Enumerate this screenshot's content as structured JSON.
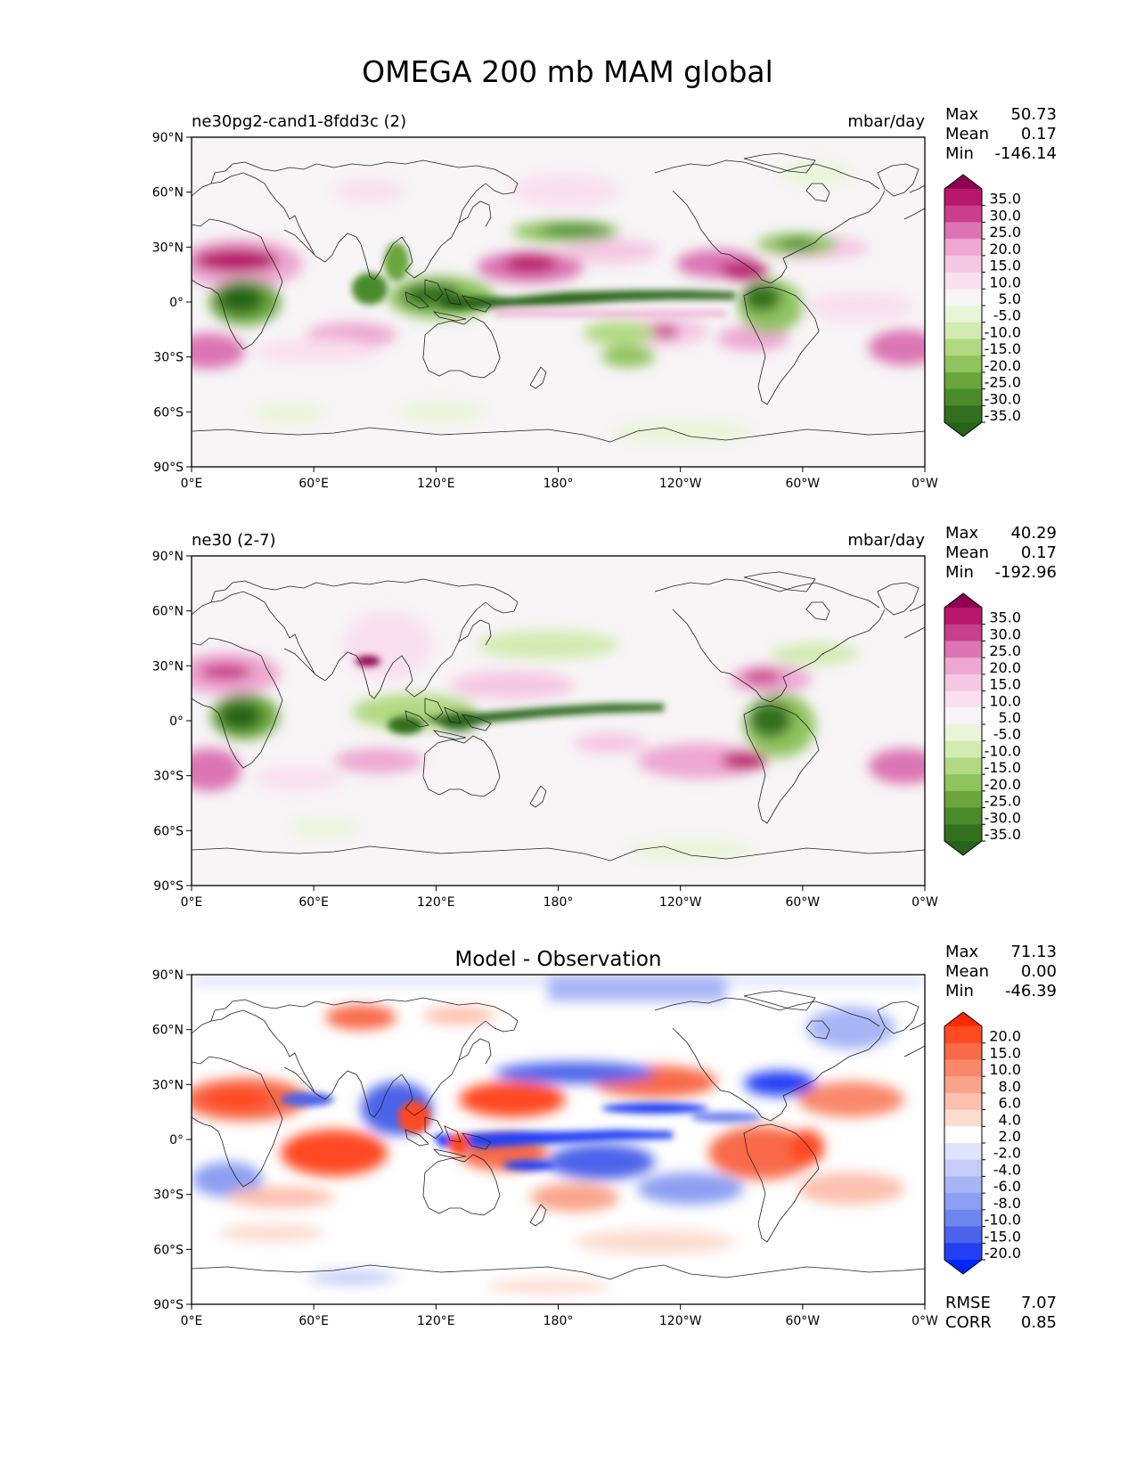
{
  "figure": {
    "title": "OMEGA 200 mb MAM global"
  },
  "axes": {
    "lat_labels": [
      "90°N",
      "60°N",
      "30°N",
      "0°",
      "30°S",
      "60°S",
      "90°S"
    ],
    "lon_labels": [
      "0°E",
      "60°E",
      "120°E",
      "180°",
      "120°W",
      "60°W",
      "0°W"
    ]
  },
  "panels": [
    {
      "title_left": "ne30pg2-cand1-8fdd3c (2)",
      "title_center": "",
      "units": "mbar/day",
      "stats": [
        {
          "label": "Max",
          "value": "50.73"
        },
        {
          "label": "Mean",
          "value": "0.17"
        },
        {
          "label": "Min",
          "value": "-146.14"
        }
      ],
      "extra_stats": [],
      "colorbar": {
        "ticks": [
          "35.0",
          "30.0",
          "25.0",
          "20.0",
          "15.0",
          "10.0",
          "5.0",
          "-5.0",
          "-10.0",
          "-15.0",
          "-20.0",
          "-25.0",
          "-30.0",
          "-35.0"
        ],
        "top_color": "#8e0152",
        "bottom_color": "#276419",
        "colors": [
          "#b8176b",
          "#c93f8b",
          "#dc75b3",
          "#eea8d2",
          "#f5c8e3",
          "#f9e0ee",
          "#f7f5f6",
          "#e9f5d9",
          "#d2ebb1",
          "#b2d982",
          "#8fc35e",
          "#6aa63c",
          "#4a8b29",
          "#33701e"
        ]
      },
      "field": "model1"
    },
    {
      "title_left": "ne30 (2-7)",
      "title_center": "",
      "units": "mbar/day",
      "stats": [
        {
          "label": "Max",
          "value": "40.29"
        },
        {
          "label": "Mean",
          "value": "0.17"
        },
        {
          "label": "Min",
          "value": "-192.96"
        }
      ],
      "extra_stats": [],
      "colorbar": {
        "ticks": [
          "35.0",
          "30.0",
          "25.0",
          "20.0",
          "15.0",
          "10.0",
          "5.0",
          "-5.0",
          "-10.0",
          "-15.0",
          "-20.0",
          "-25.0",
          "-30.0",
          "-35.0"
        ],
        "top_color": "#8e0152",
        "bottom_color": "#276419",
        "colors": [
          "#b8176b",
          "#c93f8b",
          "#dc75b3",
          "#eea8d2",
          "#f5c8e3",
          "#f9e0ee",
          "#f7f5f6",
          "#e9f5d9",
          "#d2ebb1",
          "#b2d982",
          "#8fc35e",
          "#6aa63c",
          "#4a8b29",
          "#33701e"
        ]
      },
      "field": "model2"
    },
    {
      "title_left": "",
      "title_center": "Model - Observation",
      "units": "",
      "stats": [
        {
          "label": "Max",
          "value": "71.13"
        },
        {
          "label": "Mean",
          "value": "0.00"
        },
        {
          "label": "Min",
          "value": "-46.39"
        }
      ],
      "extra_stats": [
        {
          "label": "RMSE",
          "value": "7.07"
        },
        {
          "label": "CORR",
          "value": "0.85"
        }
      ],
      "colorbar": {
        "ticks": [
          "20.0",
          "15.0",
          "10.0",
          "8.0",
          "6.0",
          "4.0",
          "2.0",
          "-2.0",
          "-4.0",
          "-6.0",
          "-8.0",
          "-10.0",
          "-15.0",
          "-20.0"
        ],
        "top_color": "#ff2a00",
        "bottom_color": "#0026ff",
        "colors": [
          "#ff4a22",
          "#f86a48",
          "#f9886a",
          "#faa48c",
          "#fcc0ae",
          "#fddcd0",
          "#ffffff",
          "#dfe4fd",
          "#c4cdfa",
          "#a8b6f6",
          "#8d9ff2",
          "#6e84ee",
          "#4b63ea",
          "#2440f4"
        ]
      },
      "field": "diff"
    }
  ]
}
